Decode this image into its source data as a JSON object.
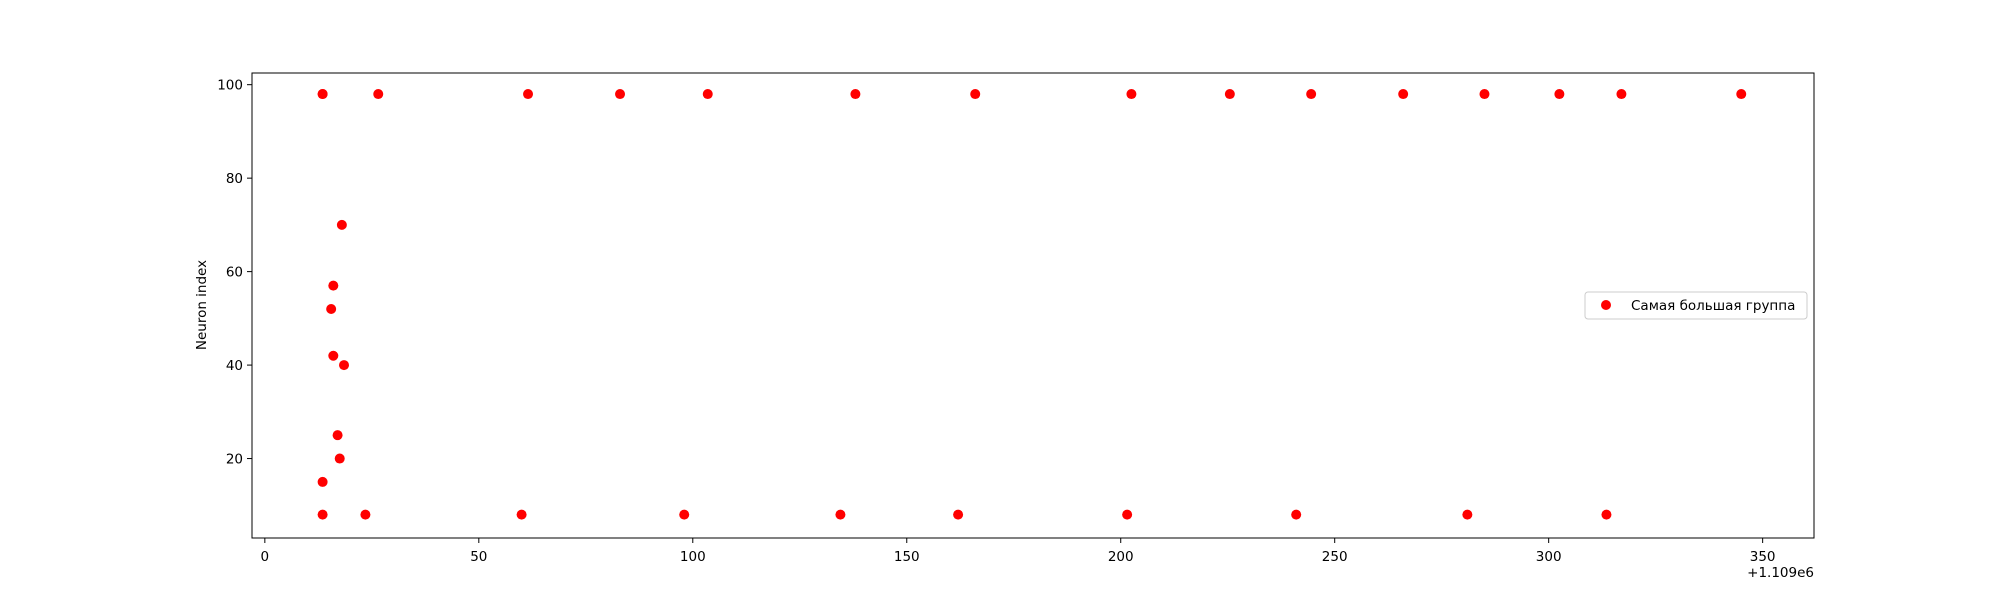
{
  "chart_data": {
    "type": "scatter",
    "title": "",
    "xlabel": "",
    "ylabel": "Neuron index",
    "x_offset_label": "+1.109e6",
    "xlim": [
      -3,
      362
    ],
    "ylim": [
      3,
      102.5
    ],
    "xticks": [
      0,
      50,
      100,
      150,
      200,
      250,
      300,
      350
    ],
    "yticks": [
      20,
      40,
      60,
      80,
      100
    ],
    "grid": false,
    "legend_position": "center-right",
    "series": [
      {
        "name": "Самая большая группа",
        "color": "#ff0000",
        "x": [
          13.5,
          13.5,
          13.5,
          13.5,
          15.5,
          16,
          16,
          17,
          17.5,
          18,
          18.5,
          23.5,
          26.5,
          60,
          61.5,
          83,
          98,
          103.5,
          134.5,
          138,
          162,
          166,
          201.5,
          202.5,
          225.5,
          241,
          244.5,
          266,
          281,
          285,
          302.5,
          313.5,
          317,
          345
        ],
        "y": [
          98,
          8,
          15,
          98,
          52,
          42,
          57,
          25,
          20,
          70,
          40,
          8,
          98,
          8,
          98,
          98,
          8,
          98,
          8,
          98,
          8,
          98,
          8,
          98,
          98,
          8,
          98,
          98,
          8,
          98,
          98,
          8,
          98,
          98
        ]
      }
    ]
  }
}
